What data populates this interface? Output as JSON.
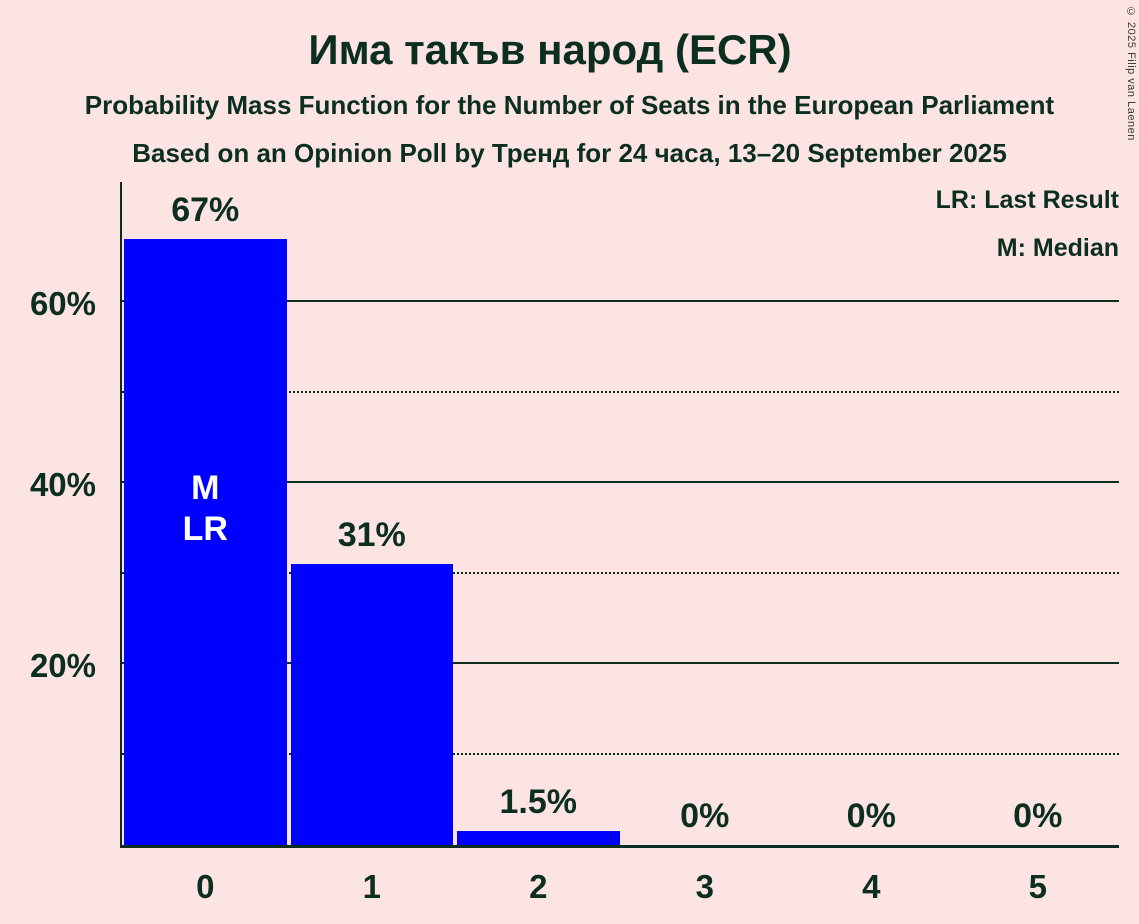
{
  "title": "Има такъв народ (ECR)",
  "subtitle1": "Probability Mass Function for the Number of Seats in the European Parliament",
  "subtitle2": "Based on an Opinion Poll by Тренд for 24 часа, 13–20 September 2025",
  "legend": {
    "lr": "LR: Last Result",
    "m": "M: Median"
  },
  "copyright": "© 2025 Filip van Laenen",
  "colors": {
    "background": "#fce4e2",
    "bar": "#0000ff",
    "text": "#0b2e20",
    "inside_label": "#ffffff"
  },
  "chart_data": {
    "type": "bar",
    "categories": [
      "0",
      "1",
      "2",
      "3",
      "4",
      "5"
    ],
    "values": [
      67,
      31,
      1.5,
      0,
      0,
      0
    ],
    "value_labels": [
      "67%",
      "31%",
      "1.5%",
      "0%",
      "0%",
      "0%"
    ],
    "bar_annotations": [
      {
        "index": 0,
        "lines": [
          "M",
          "LR"
        ]
      }
    ],
    "title": "Има такъв народ (ECR)",
    "xlabel": "",
    "ylabel": "",
    "ylim": [
      0,
      70
    ],
    "yticks": [
      20,
      40,
      60
    ],
    "ytick_labels": [
      "20%",
      "40%",
      "60%"
    ],
    "minor_gridlines": [
      10,
      30,
      50
    ],
    "grid": "horizontal-only",
    "legend_position": "top-right"
  }
}
